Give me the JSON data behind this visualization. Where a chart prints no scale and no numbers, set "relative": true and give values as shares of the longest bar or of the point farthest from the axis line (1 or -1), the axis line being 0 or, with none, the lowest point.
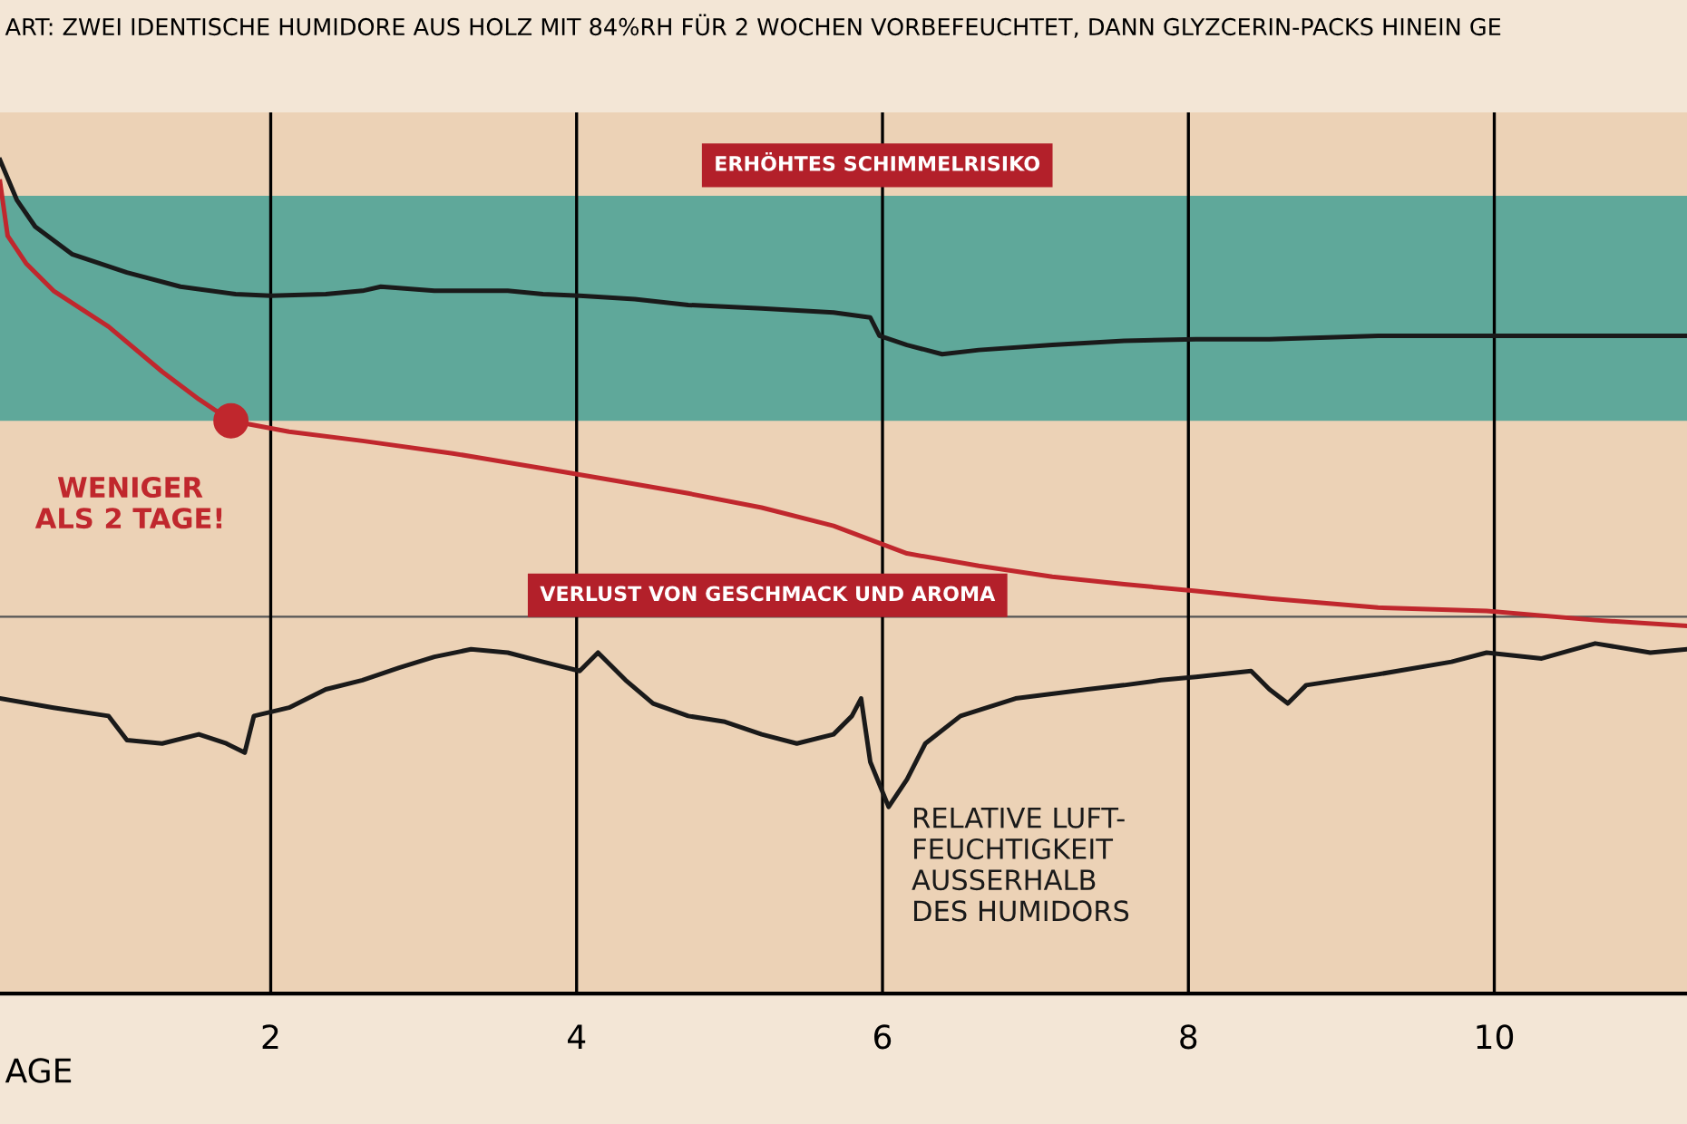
{
  "chart_data": {
    "type": "line",
    "relative": true,
    "subtitle": "ART: ZWEI IDENTISCHE HUMIDORE AUS HOLZ MIT 84%RH FÜR 2 WOCHEN VORBEFEUCHTET, DANN GLYZCERIN-PACKS HINEIN GE",
    "xlabel": "AGE",
    "xlim": [
      0.23,
      11.26
    ],
    "xticks": [
      2,
      4,
      6,
      8,
      10
    ],
    "grid": "x",
    "bands": [
      {
        "axis": "y",
        "from": 0.687,
        "to": 0.957,
        "color": "#5fa89a"
      }
    ],
    "ref_lines": [
      {
        "axis": "y",
        "value": 0.452,
        "color": "#555555"
      }
    ],
    "annotations": [
      "ERHÖHTES SCHIMMELRISIKO",
      "VERLUST VON GESCHMACK UND AROMA",
      {
        "text": "WENIGER\nALS 2 TAGE!",
        "x": 1.74,
        "y": 0.687
      }
    ],
    "series": [
      {
        "color": "#1a1a1a",
        "x": [
          0.23,
          0.34,
          0.46,
          0.7,
          1.06,
          1.41,
          1.77,
          2.0,
          2.36,
          2.6,
          2.72,
          3.07,
          3.55,
          3.78,
          4.02,
          4.38,
          4.73,
          5.21,
          5.68,
          5.92,
          5.98,
          6.16,
          6.39,
          6.63,
          7.11,
          7.58,
          8.05,
          8.53,
          9.24,
          9.95,
          10.66,
          11.26
        ],
        "values": [
          1.0,
          0.952,
          0.92,
          0.887,
          0.865,
          0.848,
          0.839,
          0.837,
          0.839,
          0.843,
          0.848,
          0.843,
          0.843,
          0.839,
          0.837,
          0.833,
          0.826,
          0.822,
          0.817,
          0.811,
          0.789,
          0.778,
          0.767,
          0.772,
          0.778,
          0.783,
          0.785,
          0.785,
          0.789,
          0.789,
          0.789,
          0.789
        ]
      },
      {
        "color": "#c0272d",
        "x": [
          0.23,
          0.28,
          0.4,
          0.58,
          0.94,
          1.29,
          1.53,
          1.74,
          2.12,
          2.6,
          3.19,
          3.78,
          4.26,
          4.73,
          5.21,
          5.68,
          6.16,
          6.63,
          7.11,
          7.58,
          8.05,
          8.53,
          9.24,
          9.95,
          10.66,
          11.26
        ],
        "values": [
          0.974,
          0.909,
          0.876,
          0.843,
          0.8,
          0.746,
          0.713,
          0.687,
          0.674,
          0.663,
          0.648,
          0.63,
          0.615,
          0.6,
          0.583,
          0.561,
          0.528,
          0.513,
          0.5,
          0.491,
          0.483,
          0.474,
          0.463,
          0.459,
          0.448,
          0.441
        ]
      },
      {
        "name": "RELATIVE LUFT-\nFEUCHTIGKEIT\nAUSSERHALB\nDES HUMIDORS",
        "color": "#1a1a1a",
        "x": [
          0.23,
          0.58,
          0.94,
          1.06,
          1.29,
          1.53,
          1.71,
          1.83,
          1.89,
          2.12,
          2.36,
          2.6,
          2.84,
          3.07,
          3.31,
          3.55,
          3.78,
          4.02,
          4.14,
          4.32,
          4.5,
          4.73,
          4.97,
          5.21,
          5.44,
          5.68,
          5.8,
          5.86,
          5.92,
          6.04,
          6.16,
          6.28,
          6.51,
          6.87,
          7.34,
          7.58,
          7.82,
          8.05,
          8.41,
          8.53,
          8.65,
          8.77,
          9.24,
          9.72,
          9.95,
          10.31,
          10.66,
          11.02,
          11.26
        ],
        "values": [
          0.354,
          0.343,
          0.333,
          0.304,
          0.3,
          0.311,
          0.3,
          0.289,
          0.333,
          0.343,
          0.365,
          0.376,
          0.391,
          0.404,
          0.413,
          0.409,
          0.398,
          0.387,
          0.409,
          0.376,
          0.348,
          0.333,
          0.326,
          0.311,
          0.3,
          0.311,
          0.333,
          0.354,
          0.278,
          0.224,
          0.257,
          0.3,
          0.333,
          0.354,
          0.365,
          0.37,
          0.376,
          0.38,
          0.387,
          0.365,
          0.348,
          0.37,
          0.383,
          0.398,
          0.409,
          0.402,
          0.42,
          0.409,
          0.413
        ]
      }
    ]
  }
}
